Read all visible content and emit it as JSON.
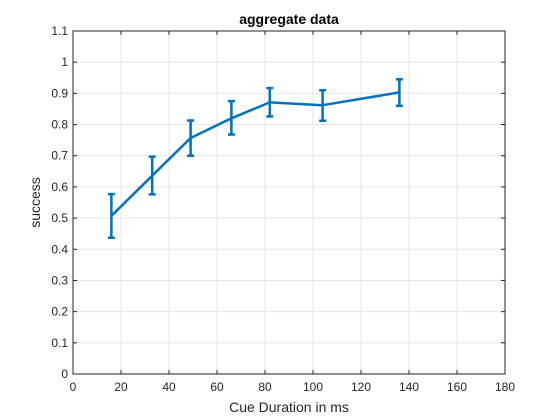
{
  "chart_data": {
    "type": "line",
    "title": "aggregate data",
    "xlabel": "Cue Duration in ms",
    "ylabel": "success",
    "xlim": [
      0,
      180
    ],
    "ylim": [
      0,
      1.1
    ],
    "xticks": [
      0,
      20,
      40,
      60,
      80,
      100,
      120,
      140,
      160,
      180
    ],
    "yticks": [
      0,
      0.1,
      0.2,
      0.3,
      0.4,
      0.5,
      0.6,
      0.7,
      0.8,
      0.9,
      1,
      1.1
    ],
    "xtick_labels": [
      "0",
      "20",
      "40",
      "60",
      "80",
      "100",
      "120",
      "140",
      "160",
      "180"
    ],
    "ytick_labels": [
      "0",
      "0.1",
      "0.2",
      "0.3",
      "0.4",
      "0.5",
      "0.6",
      "0.7",
      "0.8",
      "0.9",
      "1",
      "1.1"
    ],
    "grid": true,
    "color": "#0072BD",
    "series": [
      {
        "x": [
          16,
          33,
          49,
          66,
          82,
          104,
          136
        ],
        "y": [
          0.507,
          0.636,
          0.757,
          0.82,
          0.871,
          0.862,
          0.903
        ],
        "err_low": [
          0.437,
          0.576,
          0.7,
          0.768,
          0.826,
          0.812,
          0.86
        ],
        "err_high": [
          0.577,
          0.697,
          0.813,
          0.875,
          0.917,
          0.91,
          0.945
        ]
      }
    ]
  }
}
